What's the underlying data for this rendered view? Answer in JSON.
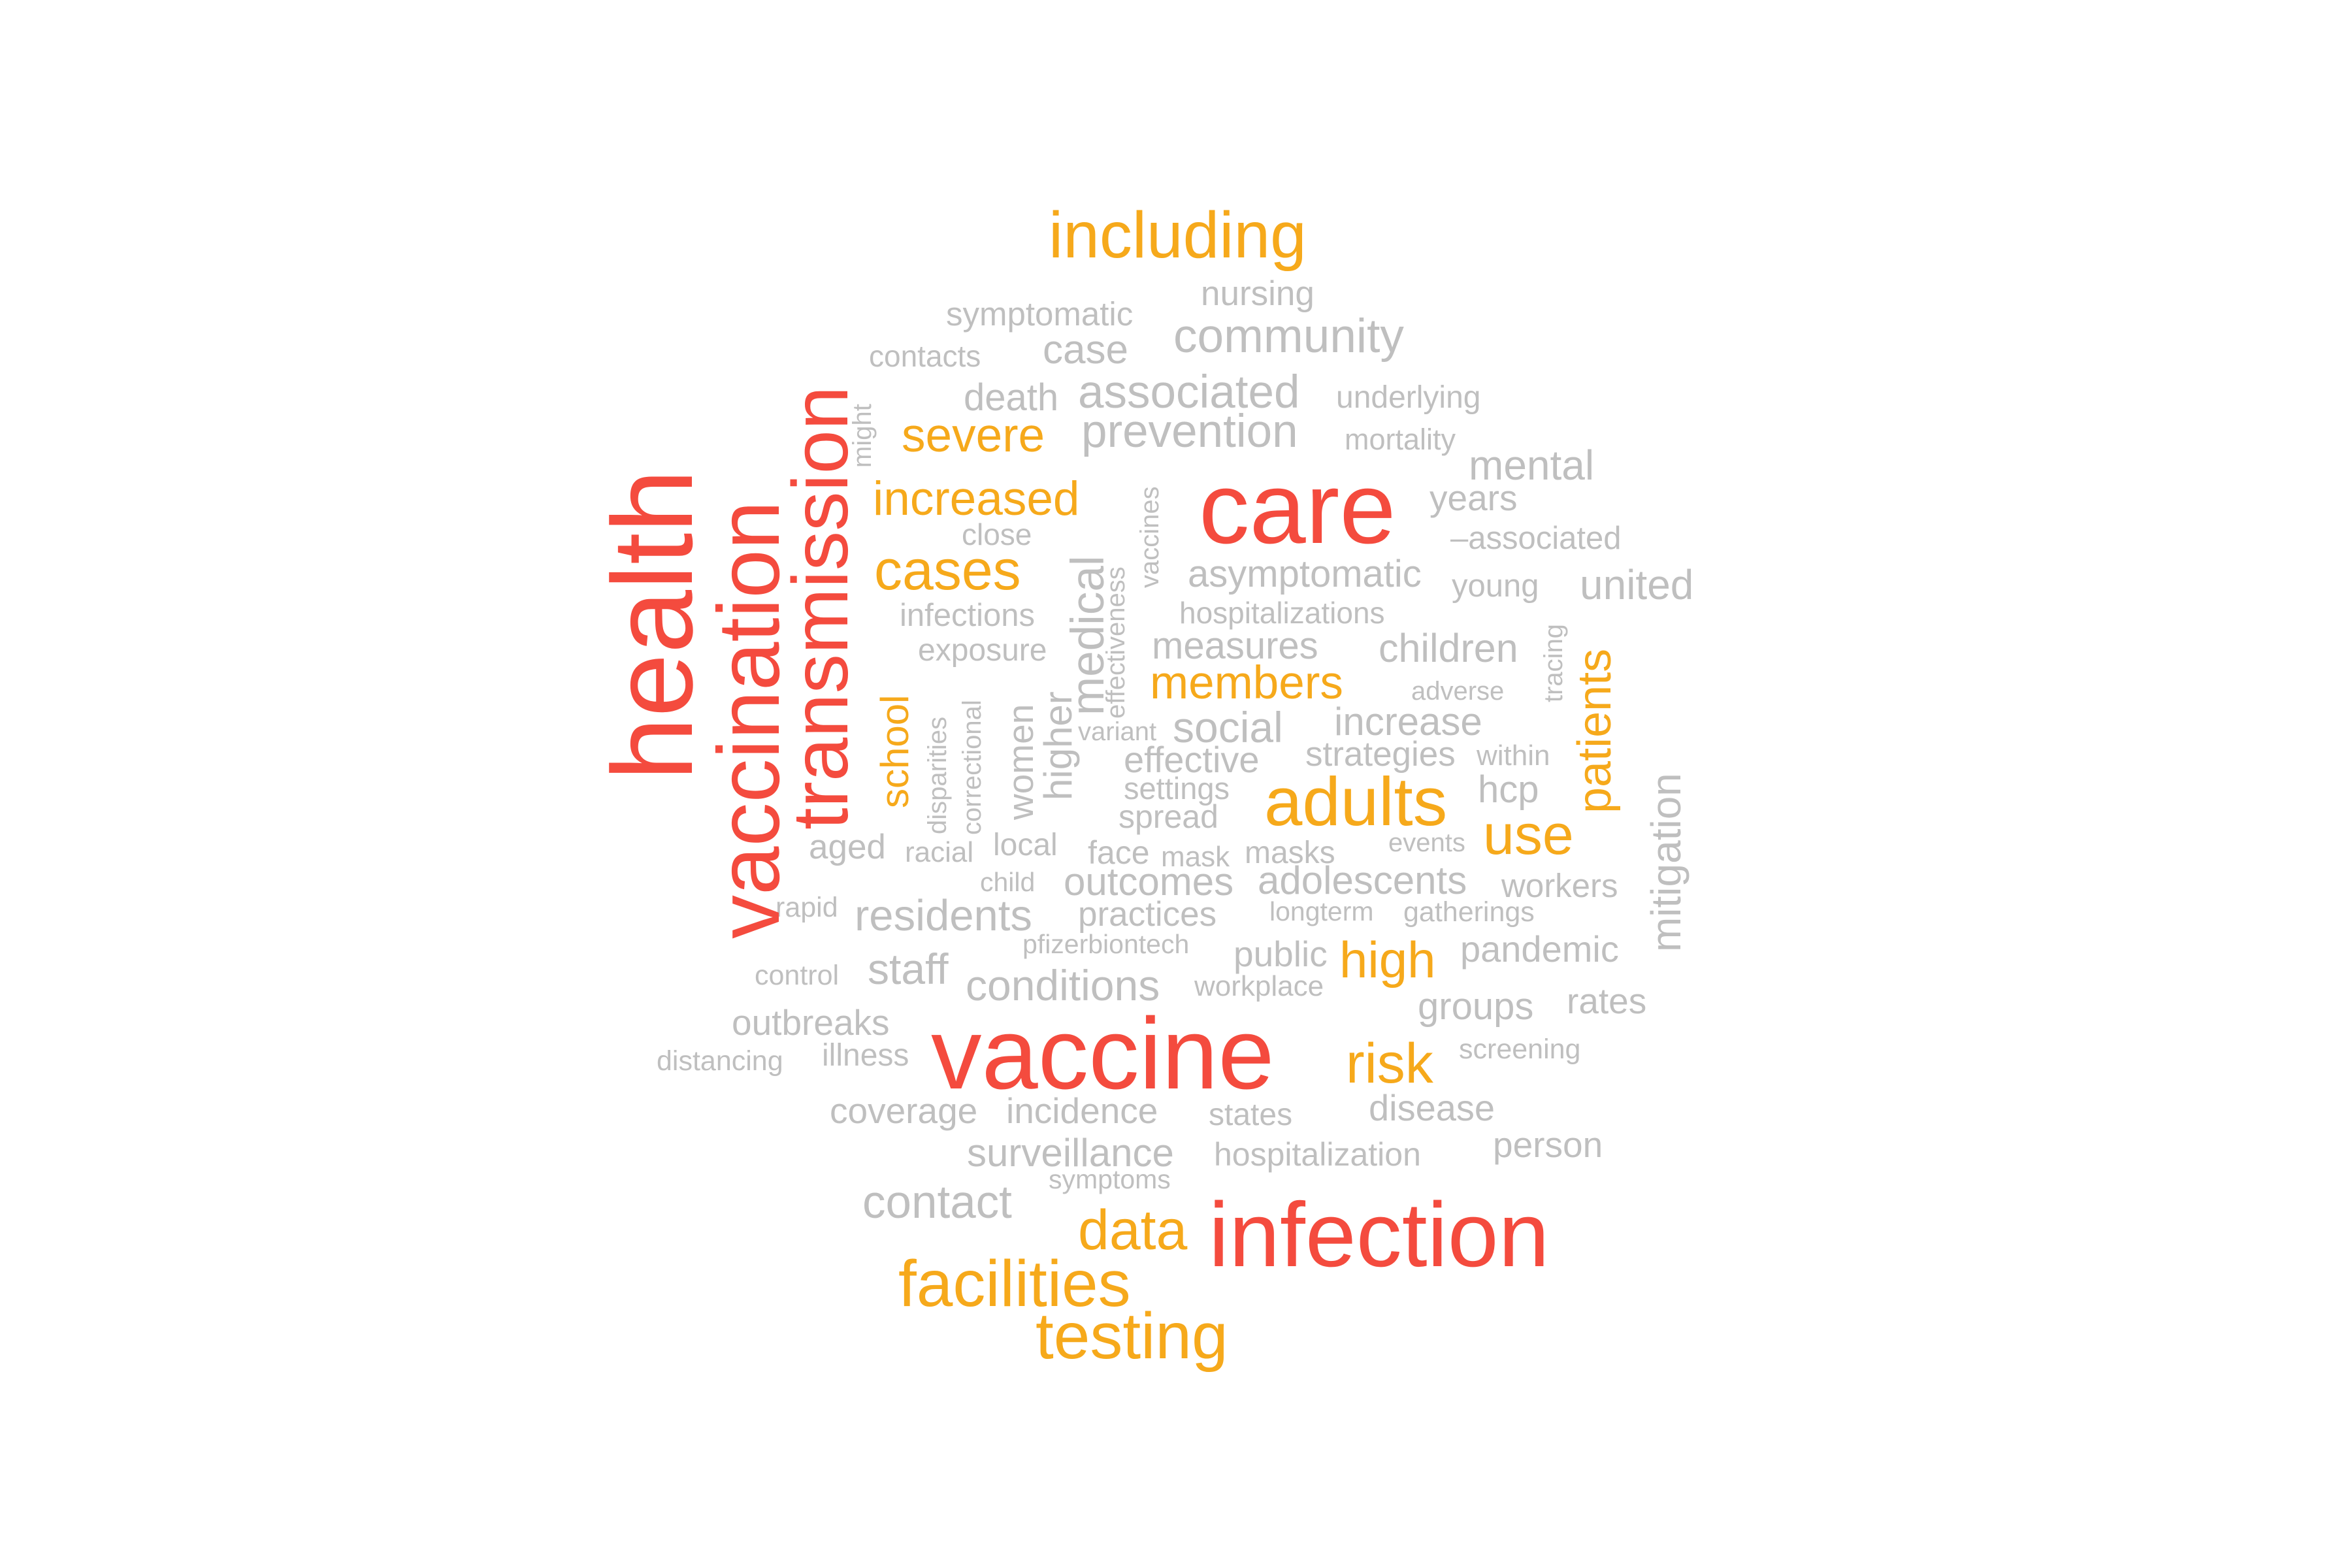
{
  "colors": {
    "red": "#f44b3e",
    "orange": "#f6a91b",
    "gray": "#bfbfbf"
  },
  "words": [
    {
      "text": "including",
      "tier": "orange"
    },
    {
      "text": "nursing",
      "tier": "gray"
    },
    {
      "text": "symptomatic",
      "tier": "gray"
    },
    {
      "text": "community",
      "tier": "gray"
    },
    {
      "text": "contacts",
      "tier": "gray"
    },
    {
      "text": "case",
      "tier": "gray"
    },
    {
      "text": "death",
      "tier": "gray"
    },
    {
      "text": "associated",
      "tier": "gray"
    },
    {
      "text": "underlying",
      "tier": "gray"
    },
    {
      "text": "severe",
      "tier": "orange"
    },
    {
      "text": "prevention",
      "tier": "gray"
    },
    {
      "text": "mortality",
      "tier": "gray"
    },
    {
      "text": "mental",
      "tier": "gray"
    },
    {
      "text": "care",
      "tier": "red"
    },
    {
      "text": "increased",
      "tier": "orange"
    },
    {
      "text": "years",
      "tier": "gray"
    },
    {
      "text": "close",
      "tier": "gray"
    },
    {
      "text": "–associated",
      "tier": "gray"
    },
    {
      "text": "cases",
      "tier": "orange"
    },
    {
      "text": "asymptomatic",
      "tier": "gray"
    },
    {
      "text": "young",
      "tier": "gray"
    },
    {
      "text": "united",
      "tier": "gray"
    },
    {
      "text": "infections",
      "tier": "gray"
    },
    {
      "text": "hospitalizations",
      "tier": "gray"
    },
    {
      "text": "exposure",
      "tier": "gray"
    },
    {
      "text": "measures",
      "tier": "gray"
    },
    {
      "text": "children",
      "tier": "gray"
    },
    {
      "text": "members",
      "tier": "orange"
    },
    {
      "text": "adverse",
      "tier": "gray"
    },
    {
      "text": "variant",
      "tier": "gray"
    },
    {
      "text": "social",
      "tier": "gray"
    },
    {
      "text": "increase",
      "tier": "gray"
    },
    {
      "text": "effective",
      "tier": "gray"
    },
    {
      "text": "strategies",
      "tier": "gray"
    },
    {
      "text": "within",
      "tier": "gray"
    },
    {
      "text": "settings",
      "tier": "gray"
    },
    {
      "text": "adults",
      "tier": "orange"
    },
    {
      "text": "hcp",
      "tier": "gray"
    },
    {
      "text": "spread",
      "tier": "gray"
    },
    {
      "text": "use",
      "tier": "orange"
    },
    {
      "text": "aged",
      "tier": "gray"
    },
    {
      "text": "racial",
      "tier": "gray"
    },
    {
      "text": "local",
      "tier": "gray"
    },
    {
      "text": "face",
      "tier": "gray"
    },
    {
      "text": "mask",
      "tier": "gray"
    },
    {
      "text": "masks",
      "tier": "gray"
    },
    {
      "text": "events",
      "tier": "gray"
    },
    {
      "text": "child",
      "tier": "gray"
    },
    {
      "text": "outcomes",
      "tier": "gray"
    },
    {
      "text": "adolescents",
      "tier": "gray"
    },
    {
      "text": "workers",
      "tier": "gray"
    },
    {
      "text": "rapid",
      "tier": "gray"
    },
    {
      "text": "residents",
      "tier": "gray"
    },
    {
      "text": "practices",
      "tier": "gray"
    },
    {
      "text": "longterm",
      "tier": "gray"
    },
    {
      "text": "gatherings",
      "tier": "gray"
    },
    {
      "text": "pfizerbiontech",
      "tier": "gray"
    },
    {
      "text": "public",
      "tier": "gray"
    },
    {
      "text": "high",
      "tier": "orange"
    },
    {
      "text": "pandemic",
      "tier": "gray"
    },
    {
      "text": "control",
      "tier": "gray"
    },
    {
      "text": "staff",
      "tier": "gray"
    },
    {
      "text": "conditions",
      "tier": "gray"
    },
    {
      "text": "workplace",
      "tier": "gray"
    },
    {
      "text": "groups",
      "tier": "gray"
    },
    {
      "text": "rates",
      "tier": "gray"
    },
    {
      "text": "outbreaks",
      "tier": "gray"
    },
    {
      "text": "vaccine",
      "tier": "red"
    },
    {
      "text": "risk",
      "tier": "orange"
    },
    {
      "text": "screening",
      "tier": "gray"
    },
    {
      "text": "distancing",
      "tier": "gray"
    },
    {
      "text": "illness",
      "tier": "gray"
    },
    {
      "text": "coverage",
      "tier": "gray"
    },
    {
      "text": "incidence",
      "tier": "gray"
    },
    {
      "text": "states",
      "tier": "gray"
    },
    {
      "text": "disease",
      "tier": "gray"
    },
    {
      "text": "surveillance",
      "tier": "gray"
    },
    {
      "text": "hospitalization",
      "tier": "gray"
    },
    {
      "text": "person",
      "tier": "gray"
    },
    {
      "text": "symptoms",
      "tier": "gray"
    },
    {
      "text": "contact",
      "tier": "gray"
    },
    {
      "text": "data",
      "tier": "orange"
    },
    {
      "text": "infection",
      "tier": "red"
    },
    {
      "text": "facilities",
      "tier": "orange"
    },
    {
      "text": "testing",
      "tier": "orange"
    },
    {
      "text": "health",
      "tier": "red"
    },
    {
      "text": "vaccination",
      "tier": "red"
    },
    {
      "text": "transmission",
      "tier": "red"
    },
    {
      "text": "might",
      "tier": "gray"
    },
    {
      "text": "school",
      "tier": "orange"
    },
    {
      "text": "disparities",
      "tier": "gray"
    },
    {
      "text": "correctional",
      "tier": "gray"
    },
    {
      "text": "women",
      "tier": "gray"
    },
    {
      "text": "higher",
      "tier": "gray"
    },
    {
      "text": "medical",
      "tier": "gray"
    },
    {
      "text": "effectiveness",
      "tier": "gray"
    },
    {
      "text": "vaccines",
      "tier": "gray"
    },
    {
      "text": "tracing",
      "tier": "gray"
    },
    {
      "text": "patients",
      "tier": "orange"
    },
    {
      "text": "mitigation",
      "tier": "gray"
    }
  ]
}
